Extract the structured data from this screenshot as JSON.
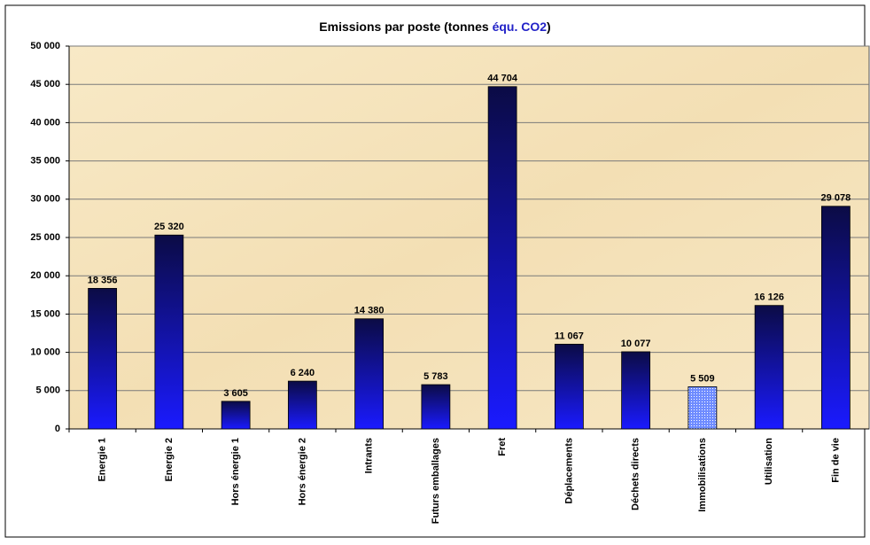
{
  "chart_data": {
    "type": "bar",
    "title": [
      {
        "text": "Emissions par poste (tonnes ",
        "color": "#000000"
      },
      {
        "text": "équ. CO2",
        "color": "#2323c8"
      },
      {
        "text": ")",
        "color": "#000000"
      }
    ],
    "categories": [
      "Energie 1",
      "Energie 2",
      "Hors énergie 1",
      "Hors énergie 2",
      "Intrants",
      "Futurs emballages",
      "Fret",
      "Déplacements",
      "Déchets directs",
      "Immobilisations",
      "Utilisation",
      "Fin de vie"
    ],
    "values": [
      18356,
      25320,
      3605,
      6240,
      14380,
      5783,
      44704,
      11067,
      10077,
      5509,
      16126,
      29078
    ],
    "value_labels": [
      "18 356",
      "25 320",
      "3 605",
      "6 240",
      "14 380",
      "5 783",
      "44 704",
      "11 067",
      "10 077",
      "5 509",
      "16 126",
      "29 078"
    ],
    "styles": [
      "gradient",
      "gradient",
      "gradient",
      "gradient",
      "gradient",
      "gradient",
      "gradient",
      "gradient",
      "gradient",
      "dotted",
      "gradient",
      "gradient"
    ],
    "color": "#1a1aff",
    "ylim": [
      0,
      50000
    ],
    "yticks": [
      0,
      {
        "value": 5000,
        "label": "5 000"
      },
      {
        "value": 10000,
        "label": "10 000"
      },
      {
        "value": 15000,
        "label": "15 000"
      },
      {
        "value": 20000,
        "label": "20 000"
      },
      {
        "value": 25000,
        "label": "25 000"
      },
      {
        "value": 30000,
        "label": "30 000"
      },
      {
        "value": 35000,
        "label": "35 000"
      },
      {
        "value": 40000,
        "label": "40 000"
      },
      {
        "value": 45000,
        "label": "45 000"
      },
      {
        "value": 50000,
        "label": "50 000"
      }
    ],
    "grid": true
  }
}
